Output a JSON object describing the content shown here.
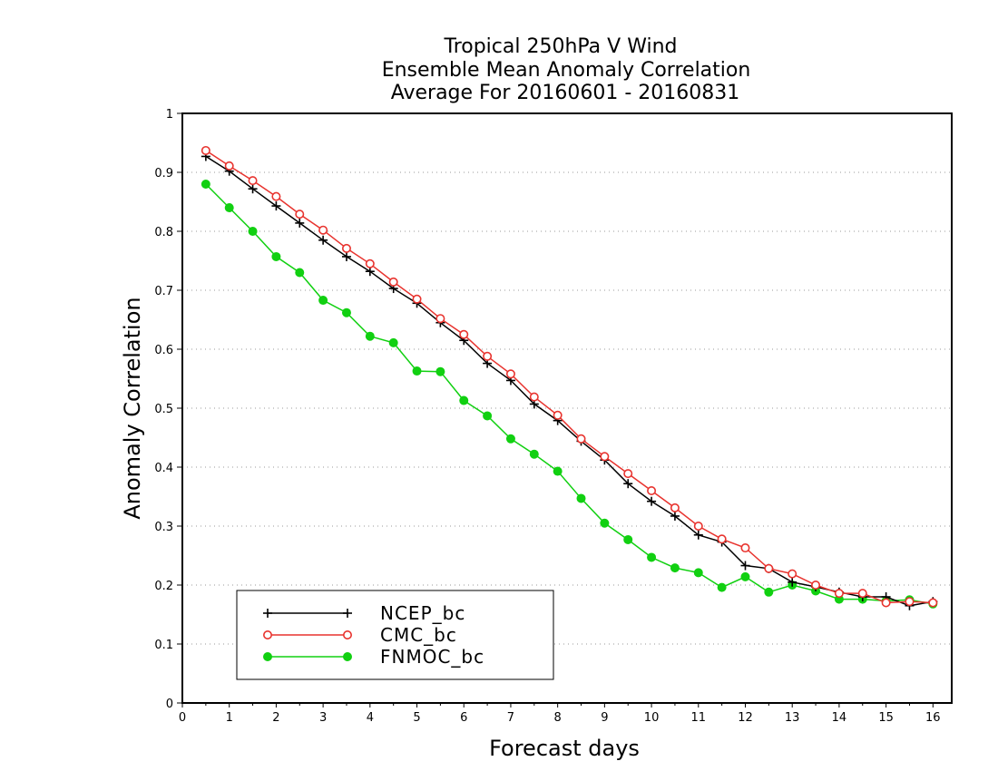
{
  "chart_data": {
    "type": "line",
    "title": [
      "Tropical 250hPa V Wind",
      "Ensemble Mean Anomaly Correlation",
      "Average For 20160601 - 20160831"
    ],
    "xlabel": "Forecast days",
    "ylabel": "Anomaly Correlation",
    "xlim": [
      0,
      16.4
    ],
    "ylim": [
      0,
      1
    ],
    "xticks": [
      "0",
      "1",
      "2",
      "3",
      "4",
      "5",
      "6",
      "7",
      "8",
      "9",
      "10",
      "11",
      "12",
      "13",
      "14",
      "15",
      "16"
    ],
    "yticks": [
      "0",
      "0.1",
      "0.2",
      "0.3",
      "0.4",
      "0.5",
      "0.6",
      "0.7",
      "0.8",
      "0.9",
      "1"
    ],
    "grid": "dotted horizontal",
    "legend_position": "bottom-left",
    "x": [
      0.5,
      1,
      1.5,
      2,
      2.5,
      3,
      3.5,
      4,
      4.5,
      5,
      5.5,
      6,
      6.5,
      7,
      7.5,
      8,
      8.5,
      9,
      9.5,
      10,
      10.5,
      11,
      11.5,
      12,
      12.5,
      13,
      13.5,
      14,
      14.5,
      15,
      15.5,
      16
    ],
    "series": [
      {
        "name": "NCEP_bc",
        "color": "#000000",
        "marker": "plus",
        "values": [
          0.927,
          0.902,
          0.872,
          0.843,
          0.814,
          0.785,
          0.757,
          0.732,
          0.703,
          0.678,
          0.645,
          0.615,
          0.576,
          0.547,
          0.507,
          0.479,
          0.444,
          0.412,
          0.372,
          0.342,
          0.317,
          0.285,
          0.273,
          0.233,
          0.228,
          0.205,
          0.197,
          0.188,
          0.18,
          0.18,
          0.165,
          0.172
        ]
      },
      {
        "name": "CMC_bc",
        "color": "#e8332e",
        "marker": "open-circle",
        "values": [
          0.937,
          0.911,
          0.886,
          0.859,
          0.829,
          0.802,
          0.771,
          0.745,
          0.714,
          0.685,
          0.652,
          0.625,
          0.588,
          0.558,
          0.519,
          0.488,
          0.448,
          0.418,
          0.389,
          0.36,
          0.331,
          0.3,
          0.278,
          0.263,
          0.228,
          0.219,
          0.2,
          0.186,
          0.186,
          0.17,
          0.172,
          0.17
        ]
      },
      {
        "name": "FNMOC_bc",
        "color": "#11d011",
        "marker": "filled-circle",
        "values": [
          0.88,
          0.84,
          0.8,
          0.757,
          0.73,
          0.683,
          0.662,
          0.622,
          0.611,
          0.563,
          0.562,
          0.513,
          0.487,
          0.448,
          0.422,
          0.393,
          0.347,
          0.305,
          0.277,
          0.247,
          0.229,
          0.221,
          0.196,
          0.214,
          0.188,
          0.2,
          0.19,
          0.176,
          0.176,
          0.173,
          0.175,
          0.168
        ]
      }
    ]
  }
}
